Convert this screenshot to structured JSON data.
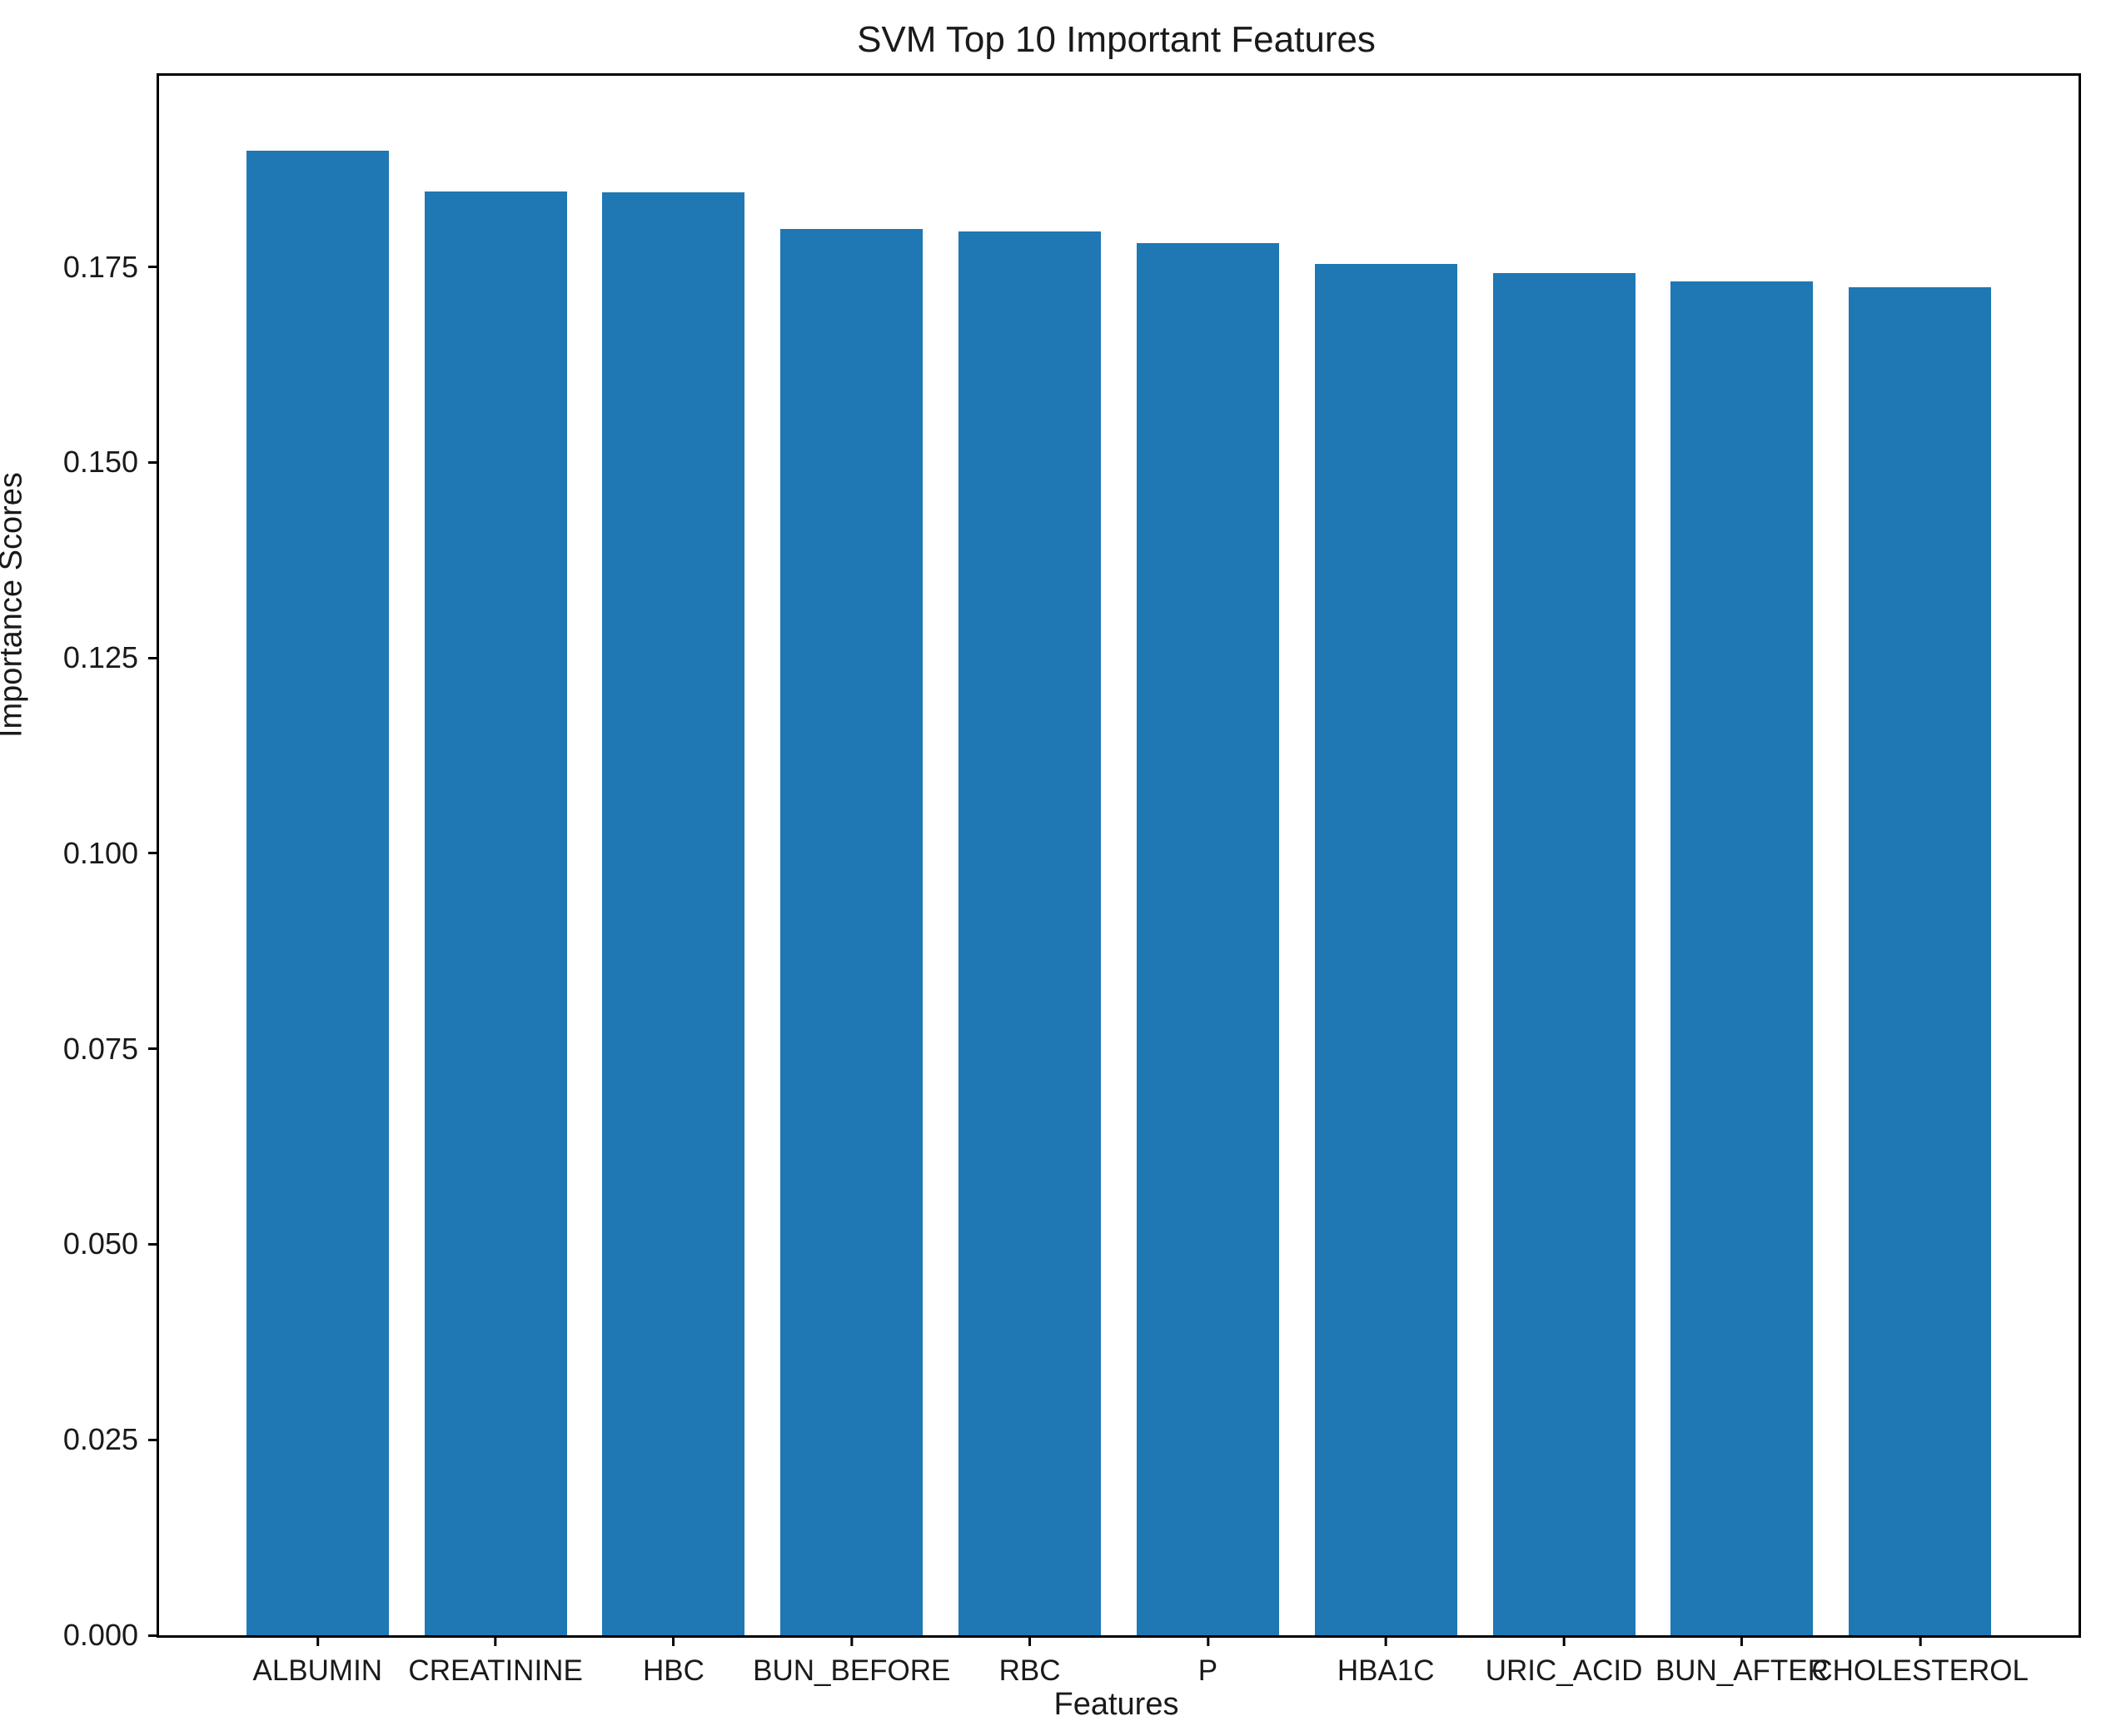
{
  "chart_data": {
    "type": "bar",
    "title": "SVM Top 10 Important Features",
    "xlabel": "Features",
    "ylabel": "Importance Scores",
    "categories": [
      "ALBUMIN",
      "CREATININE",
      "HBC",
      "BUN_BEFORE",
      "RBC",
      "P",
      "HBA1C",
      "URIC_ACID",
      "BUN_AFTER",
      "CHOLESTEROL"
    ],
    "values": [
      0.1899,
      0.1846,
      0.1845,
      0.1799,
      0.1795,
      0.178,
      0.1754,
      0.1742,
      0.1731,
      0.1724
    ],
    "yticks": [
      0.0,
      0.025,
      0.05,
      0.075,
      0.1,
      0.125,
      0.15,
      0.175
    ],
    "ytick_decimals": 3,
    "ylim": [
      0,
      0.19944
    ],
    "xlim_units": [
      -0.89,
      9.89
    ],
    "bar_width_units": 0.8,
    "bar_color": "#1f77b4",
    "grid": false,
    "legend_position": "none"
  }
}
